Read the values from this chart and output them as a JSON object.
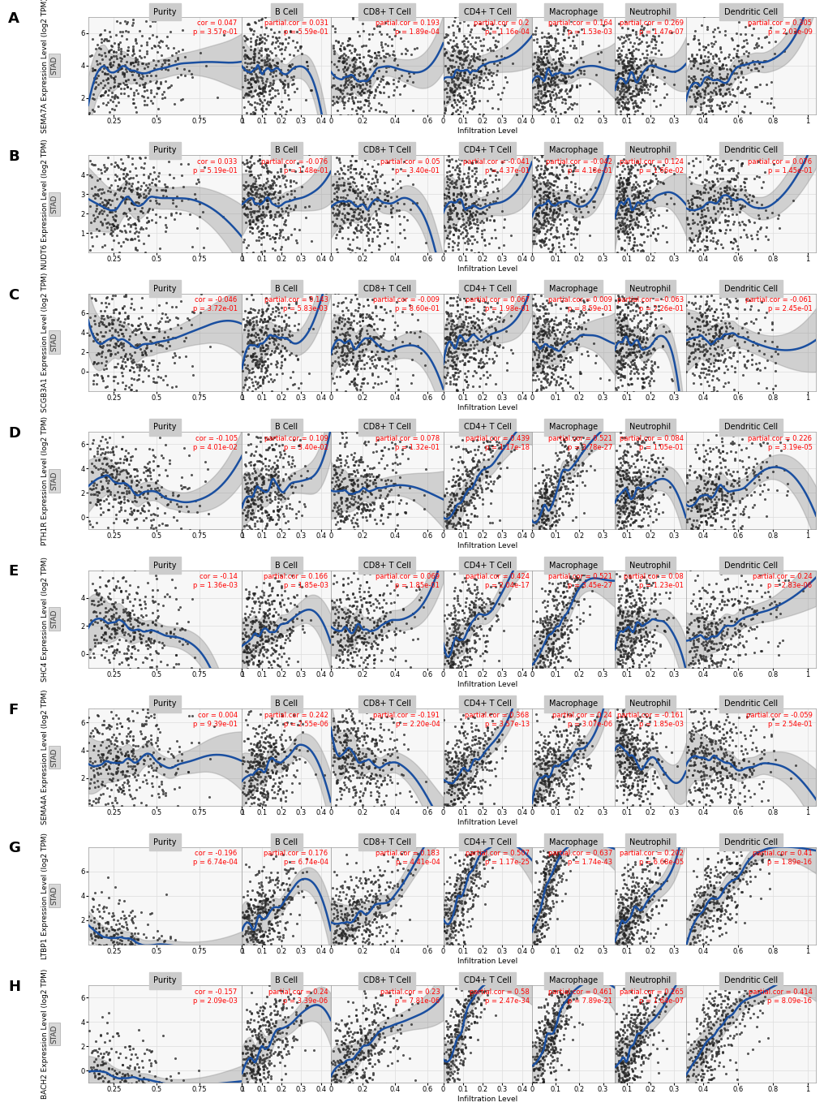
{
  "rows": [
    {
      "label": "A",
      "gene": "SEMA7A",
      "ylabel": "SEMA7A Expression Level (log2 TPM)",
      "panels": [
        {
          "title": "Purity",
          "cor_label": "cor = 0.047",
          "p_label": "p = 3.57e-01",
          "xmin": 0.1,
          "xmax": 1.0,
          "xticks": [
            0.25,
            0.5,
            0.75,
            1.0
          ]
        },
        {
          "title": "B Cell",
          "cor_label": "partial.cor = 0.031",
          "p_label": "p = 5.59e-01",
          "xmin": 0.0,
          "xmax": 0.45,
          "xticks": [
            0.0,
            0.1,
            0.2,
            0.3,
            0.4
          ]
        },
        {
          "title": "CD8+ T Cell",
          "cor_label": "partial.cor = 0.193",
          "p_label": "p = 1.89e-04",
          "xmin": 0.0,
          "xmax": 0.7,
          "xticks": [
            0.0,
            0.2,
            0.4,
            0.6
          ]
        },
        {
          "title": "CD4+ T Cell",
          "cor_label": "partial.cor = 0.2",
          "p_label": "p = 1.16e-04",
          "xmin": 0.0,
          "xmax": 0.45,
          "xticks": [
            0.0,
            0.1,
            0.2,
            0.3,
            0.4
          ]
        },
        {
          "title": "Macrophage",
          "cor_label": "partial.cor = 0.164",
          "p_label": "p = 1.53e-03",
          "xmin": 0.0,
          "xmax": 0.35,
          "xticks": [
            0.0,
            0.1,
            0.2,
            0.3
          ]
        },
        {
          "title": "Neutrophil",
          "cor_label": "partial.cor = 0.269",
          "p_label": "p = 1.47e-07",
          "xmin": 0.05,
          "xmax": 0.35,
          "xticks": [
            0.1,
            0.2,
            0.3
          ]
        },
        {
          "title": "Dendritic Cell",
          "cor_label": "partial.cor = 0.305",
          "p_label": "p = 2.03e-09",
          "xmin": 0.3,
          "xmax": 1.05,
          "xticks": [
            0.4,
            0.6,
            0.8,
            1.0
          ]
        }
      ],
      "ymin": 1.0,
      "ymax": 7.0,
      "yticks": [
        2,
        4,
        6
      ],
      "trend": "slightly_positive"
    },
    {
      "label": "B",
      "gene": "NUDT6",
      "ylabel": "NUDT6 Expression Level (log2 TPM)",
      "panels": [
        {
          "title": "Purity",
          "cor_label": "cor = 0.033",
          "p_label": "p = 5.19e-01",
          "xmin": 0.1,
          "xmax": 1.0,
          "xticks": [
            0.25,
            0.5,
            0.75,
            1.0
          ]
        },
        {
          "title": "B Cell",
          "cor_label": "partial.cor = -0.076",
          "p_label": "p = 1.48e-01",
          "xmin": 0.0,
          "xmax": 0.45,
          "xticks": [
            0.0,
            0.1,
            0.2,
            0.3,
            0.4
          ]
        },
        {
          "title": "CD8+ T Cell",
          "cor_label": "partial.cor = 0.05",
          "p_label": "p = 3.40e-01",
          "xmin": 0.0,
          "xmax": 0.7,
          "xticks": [
            0.0,
            0.2,
            0.4,
            0.6
          ]
        },
        {
          "title": "CD4+ T Cell",
          "cor_label": "partial.cor = -0.041",
          "p_label": "p = 4.37e-01",
          "xmin": 0.0,
          "xmax": 0.45,
          "xticks": [
            0.0,
            0.1,
            0.2,
            0.3,
            0.4
          ]
        },
        {
          "title": "Macrophage",
          "cor_label": "partial.cor = -0.042",
          "p_label": "p = 4.18e-01",
          "xmin": 0.0,
          "xmax": 0.35,
          "xticks": [
            0.0,
            0.1,
            0.2,
            0.3
          ]
        },
        {
          "title": "Neutrophil",
          "cor_label": "partial.cor = 0.124",
          "p_label": "p = 1.66e-02",
          "xmin": 0.05,
          "xmax": 0.35,
          "xticks": [
            0.1,
            0.2,
            0.3
          ]
        },
        {
          "title": "Dendritic Cell",
          "cor_label": "partial.cor = 0.076",
          "p_label": "p = 1.45e-01",
          "xmin": 0.3,
          "xmax": 1.05,
          "xticks": [
            0.4,
            0.6,
            0.8,
            1.0
          ]
        }
      ],
      "ymin": 0.0,
      "ymax": 5.0,
      "yticks": [
        1,
        2,
        3,
        4
      ],
      "trend": "flat"
    },
    {
      "label": "C",
      "gene": "SCGB3A1",
      "ylabel": "SCGB3A1 Expression Level (log2 TPM)",
      "panels": [
        {
          "title": "Purity",
          "cor_label": "cor = -0.046",
          "p_label": "p = 3.72e-01",
          "xmin": 0.1,
          "xmax": 1.0,
          "xticks": [
            0.25,
            0.5,
            0.75,
            1.0
          ]
        },
        {
          "title": "B Cell",
          "cor_label": "partial.cor = 0.143",
          "p_label": "p = 5.83e-03",
          "xmin": 0.0,
          "xmax": 0.45,
          "xticks": [
            0.0,
            0.1,
            0.2,
            0.3,
            0.4
          ]
        },
        {
          "title": "CD8+ T Cell",
          "cor_label": "partial.cor = -0.009",
          "p_label": "p = 8.60e-01",
          "xmin": 0.0,
          "xmax": 0.7,
          "xticks": [
            0.0,
            0.2,
            0.4,
            0.6
          ]
        },
        {
          "title": "CD4+ T Cell",
          "cor_label": "partial.cor = 0.067",
          "p_label": "p = 1.98e-01",
          "xmin": 0.0,
          "xmax": 0.45,
          "xticks": [
            0.0,
            0.1,
            0.2,
            0.3,
            0.4
          ]
        },
        {
          "title": "Macrophage",
          "cor_label": "partial.cor = 0.009",
          "p_label": "p = 8.59e-01",
          "xmin": 0.0,
          "xmax": 0.35,
          "xticks": [
            0.0,
            0.1,
            0.2,
            0.3
          ]
        },
        {
          "title": "Neutrophil",
          "cor_label": "partial.cor = -0.063",
          "p_label": "p = 2.26e-01",
          "xmin": 0.05,
          "xmax": 0.35,
          "xticks": [
            0.1,
            0.2,
            0.3
          ]
        },
        {
          "title": "Dendritic Cell",
          "cor_label": "partial.cor = -0.061",
          "p_label": "p = 2.45e-01",
          "xmin": 0.3,
          "xmax": 1.05,
          "xticks": [
            0.4,
            0.6,
            0.8,
            1.0
          ]
        }
      ],
      "ymin": -2.0,
      "ymax": 8.0,
      "yticks": [
        0,
        2,
        4,
        6
      ],
      "trend": "flat"
    },
    {
      "label": "D",
      "gene": "PTH1R",
      "ylabel": "PTH1R Expression Level (log2 TPM)",
      "panels": [
        {
          "title": "Purity",
          "cor_label": "cor = -0.105",
          "p_label": "p = 4.01e-02",
          "xmin": 0.1,
          "xmax": 1.0,
          "xticks": [
            0.25,
            0.5,
            0.75,
            1.0
          ]
        },
        {
          "title": "B Cell",
          "cor_label": "partial.cor = 0.109",
          "p_label": "p = 3.40e-02",
          "xmin": 0.0,
          "xmax": 0.45,
          "xticks": [
            0.0,
            0.1,
            0.2,
            0.3,
            0.4
          ]
        },
        {
          "title": "CD8+ T Cell",
          "cor_label": "partial.cor = 0.078",
          "p_label": "p = 1.32e-01",
          "xmin": 0.0,
          "xmax": 0.7,
          "xticks": [
            0.0,
            0.2,
            0.4,
            0.6
          ]
        },
        {
          "title": "CD4+ T Cell",
          "cor_label": "partial.cor = 0.439",
          "p_label": "p = 1.17e-18",
          "xmin": 0.0,
          "xmax": 0.45,
          "xticks": [
            0.0,
            0.1,
            0.2,
            0.3,
            0.4
          ]
        },
        {
          "title": "Macrophage",
          "cor_label": "partial.cor = 0.521",
          "p_label": "p = 3.78e-27",
          "xmin": 0.0,
          "xmax": 0.35,
          "xticks": [
            0.0,
            0.1,
            0.2,
            0.3
          ]
        },
        {
          "title": "Neutrophil",
          "cor_label": "partial.cor = 0.084",
          "p_label": "p = 1.05e-01",
          "xmin": 0.05,
          "xmax": 0.35,
          "xticks": [
            0.1,
            0.2,
            0.3
          ]
        },
        {
          "title": "Dendritic Cell",
          "cor_label": "partial.cor = 0.226",
          "p_label": "p = 3.19e-05",
          "xmin": 0.3,
          "xmax": 1.05,
          "xticks": [
            0.4,
            0.6,
            0.8,
            1.0
          ]
        }
      ],
      "ymin": -1.0,
      "ymax": 7.0,
      "yticks": [
        0,
        2,
        4,
        6
      ],
      "trend": "positive"
    },
    {
      "label": "E",
      "gene": "SHC4",
      "ylabel": "SHC4 Expression Level (log2 TPM)",
      "panels": [
        {
          "title": "Purity",
          "cor_label": "cor = -0.14",
          "p_label": "p = 1.36e-03",
          "xmin": 0.1,
          "xmax": 1.0,
          "xticks": [
            0.25,
            0.5,
            0.75,
            1.0
          ]
        },
        {
          "title": "B Cell",
          "cor_label": "partial.cor = 0.166",
          "p_label": "p = 1.85e-03",
          "xmin": 0.0,
          "xmax": 0.45,
          "xticks": [
            0.0,
            0.1,
            0.2,
            0.3,
            0.4
          ]
        },
        {
          "title": "CD8+ T Cell",
          "cor_label": "partial.cor = 0.069",
          "p_label": "p = 1.85e-01",
          "xmin": 0.0,
          "xmax": 0.7,
          "xticks": [
            0.0,
            0.2,
            0.4,
            0.6
          ]
        },
        {
          "title": "CD4+ T Cell",
          "cor_label": "partial.cor = 0.424",
          "p_label": "p = 2.04e-17",
          "xmin": 0.0,
          "xmax": 0.45,
          "xticks": [
            0.0,
            0.1,
            0.2,
            0.3,
            0.4
          ]
        },
        {
          "title": "Macrophage",
          "cor_label": "partial.cor = 0.521",
          "p_label": "p = 3.45e-27",
          "xmin": 0.0,
          "xmax": 0.35,
          "xticks": [
            0.0,
            0.1,
            0.2,
            0.3
          ]
        },
        {
          "title": "Neutrophil",
          "cor_label": "partial.cor = 0.08",
          "p_label": "p = 1.23e-01",
          "xmin": 0.05,
          "xmax": 0.35,
          "xticks": [
            0.1,
            0.2,
            0.3
          ]
        },
        {
          "title": "Dendritic Cell",
          "cor_label": "partial.cor = 0.24",
          "p_label": "p = 2.83e-06",
          "xmin": 0.3,
          "xmax": 1.05,
          "xticks": [
            0.4,
            0.6,
            0.8,
            1.0
          ]
        }
      ],
      "ymin": -1.0,
      "ymax": 6.0,
      "yticks": [
        0,
        2,
        4
      ],
      "trend": "positive"
    },
    {
      "label": "F",
      "gene": "SEMA4A",
      "ylabel": "SEMA4A Expression Level (log2 TPM)",
      "panels": [
        {
          "title": "Purity",
          "cor_label": "cor = 0.004",
          "p_label": "p = 9.39e-01",
          "xmin": 0.1,
          "xmax": 1.0,
          "xticks": [
            0.25,
            0.5,
            0.75,
            1.0
          ]
        },
        {
          "title": "B Cell",
          "cor_label": "partial.cor = 0.242",
          "p_label": "p = 2.55e-06",
          "xmin": 0.0,
          "xmax": 0.45,
          "xticks": [
            0.0,
            0.1,
            0.2,
            0.3,
            0.4
          ]
        },
        {
          "title": "CD8+ T Cell",
          "cor_label": "partial.cor = -0.191",
          "p_label": "p = 2.20e-04",
          "xmin": 0.0,
          "xmax": 0.7,
          "xticks": [
            0.0,
            0.2,
            0.4,
            0.6
          ]
        },
        {
          "title": "CD4+ T Cell",
          "cor_label": "partial.cor = 0.368",
          "p_label": "p = 3.57e-13",
          "xmin": 0.0,
          "xmax": 0.45,
          "xticks": [
            0.0,
            0.1,
            0.2,
            0.3,
            0.4
          ]
        },
        {
          "title": "Macrophage",
          "cor_label": "partial.cor = 0.24",
          "p_label": "p = 3.07e-06",
          "xmin": 0.0,
          "xmax": 0.35,
          "xticks": [
            0.0,
            0.1,
            0.2,
            0.3
          ]
        },
        {
          "title": "Neutrophil",
          "cor_label": "partial.cor = -0.161",
          "p_label": "p = 1.85e-03",
          "xmin": 0.05,
          "xmax": 0.35,
          "xticks": [
            0.1,
            0.2,
            0.3
          ]
        },
        {
          "title": "Dendritic Cell",
          "cor_label": "partial.cor = -0.059",
          "p_label": "p = 2.54e-01",
          "xmin": 0.3,
          "xmax": 1.05,
          "xticks": [
            0.4,
            0.6,
            0.8,
            1.0
          ]
        }
      ],
      "ymin": 0.0,
      "ymax": 7.0,
      "yticks": [
        2,
        4,
        6
      ],
      "trend": "positive_then_flat"
    },
    {
      "label": "G",
      "gene": "LTBP1",
      "ylabel": "LTBP1 Expression Level (log2 TPM)",
      "panels": [
        {
          "title": "Purity",
          "cor_label": "cor = -0.196",
          "p_label": "p = 6.74e-04",
          "xmin": 0.1,
          "xmax": 1.0,
          "xticks": [
            0.25,
            0.5,
            0.75,
            1.0
          ]
        },
        {
          "title": "B Cell",
          "cor_label": "partial.cor = 0.176",
          "p_label": "p = 6.74e-04",
          "xmin": 0.0,
          "xmax": 0.45,
          "xticks": [
            0.0,
            0.1,
            0.2,
            0.3,
            0.4
          ]
        },
        {
          "title": "CD8+ T Cell",
          "cor_label": "partial.cor = 0.183",
          "p_label": "p = 4.41e-04",
          "xmin": 0.0,
          "xmax": 0.7,
          "xticks": [
            0.0,
            0.2,
            0.4,
            0.6
          ]
        },
        {
          "title": "CD4+ T Cell",
          "cor_label": "partial.cor = 0.507",
          "p_label": "p = 1.17e-25",
          "xmin": 0.0,
          "xmax": 0.45,
          "xticks": [
            0.0,
            0.1,
            0.2,
            0.3,
            0.4
          ]
        },
        {
          "title": "Macrophage",
          "cor_label": "partial.cor = 0.637",
          "p_label": "p = 1.74e-43",
          "xmin": 0.0,
          "xmax": 0.35,
          "xticks": [
            0.0,
            0.1,
            0.2,
            0.3
          ]
        },
        {
          "title": "Neutrophil",
          "cor_label": "partial.cor = 0.202",
          "p_label": "p = 6.68e-05",
          "xmin": 0.05,
          "xmax": 0.35,
          "xticks": [
            0.1,
            0.2,
            0.3
          ]
        },
        {
          "title": "Dendritic Cell",
          "cor_label": "partial.cor = 0.41",
          "p_label": "p = 1.89e-16",
          "xmin": 0.3,
          "xmax": 1.05,
          "xticks": [
            0.4,
            0.6,
            0.8,
            1.0
          ]
        }
      ],
      "ymin": 0.0,
      "ymax": 8.0,
      "yticks": [
        2,
        4,
        6
      ],
      "trend": "strong_positive"
    },
    {
      "label": "H",
      "gene": "BACH2",
      "ylabel": "BACH2 Expression Level (log2 TPM)",
      "panels": [
        {
          "title": "Purity",
          "cor_label": "cor = -0.157",
          "p_label": "p = 2.09e-03",
          "xmin": 0.1,
          "xmax": 1.0,
          "xticks": [
            0.25,
            0.5,
            0.75,
            1.0
          ]
        },
        {
          "title": "B Cell",
          "cor_label": "partial.cor = 0.24",
          "p_label": "p = 3.39e-06",
          "xmin": 0.0,
          "xmax": 0.45,
          "xticks": [
            0.0,
            0.1,
            0.2,
            0.3,
            0.4
          ]
        },
        {
          "title": "CD8+ T Cell",
          "cor_label": "partial.cor = 0.23",
          "p_label": "p = 7.81e-06",
          "xmin": 0.0,
          "xmax": 0.7,
          "xticks": [
            0.0,
            0.2,
            0.4,
            0.6
          ]
        },
        {
          "title": "CD4+ T Cell",
          "cor_label": "partial.cor = 0.58",
          "p_label": "p = 2.47e-34",
          "xmin": 0.0,
          "xmax": 0.45,
          "xticks": [
            0.0,
            0.1,
            0.2,
            0.3,
            0.4
          ]
        },
        {
          "title": "Macrophage",
          "cor_label": "partial.cor = 0.461",
          "p_label": "p = 7.89e-21",
          "xmin": 0.0,
          "xmax": 0.35,
          "xticks": [
            0.0,
            0.1,
            0.2,
            0.3
          ]
        },
        {
          "title": "Neutrophil",
          "cor_label": "partial.cor = 0.265",
          "p_label": "p = 1.64e-07",
          "xmin": 0.05,
          "xmax": 0.35,
          "xticks": [
            0.1,
            0.2,
            0.3
          ]
        },
        {
          "title": "Dendritic Cell",
          "cor_label": "partial.cor = 0.414",
          "p_label": "p = 8.09e-16",
          "xmin": 0.3,
          "xmax": 1.05,
          "xticks": [
            0.4,
            0.6,
            0.8,
            1.0
          ]
        }
      ],
      "ymin": -1.0,
      "ymax": 7.0,
      "yticks": [
        0,
        2,
        4,
        6
      ],
      "trend": "strong_positive"
    }
  ],
  "n_points": 400,
  "dot_color": "#222222",
  "dot_size": 5,
  "dot_alpha": 0.75,
  "trend_color": "#1a4fa0",
  "trend_linewidth": 1.8,
  "ci_color": "#888888",
  "ci_alpha": 0.35,
  "panel_bg": "#f7f7f7",
  "grid_color": "#dddddd",
  "title_bg": "#cccccc",
  "label_fontsize": 6,
  "title_fontsize": 7,
  "cor_fontsize": 6,
  "ylabel_fontsize": 6.5,
  "xlabel": "Infiltration Level",
  "xlabel_fontsize": 6.5,
  "row_label_fontsize": 13,
  "stad_fontsize": 6.5,
  "width_ratios": [
    1.3,
    0.75,
    0.95,
    0.75,
    0.7,
    0.6,
    1.1
  ]
}
